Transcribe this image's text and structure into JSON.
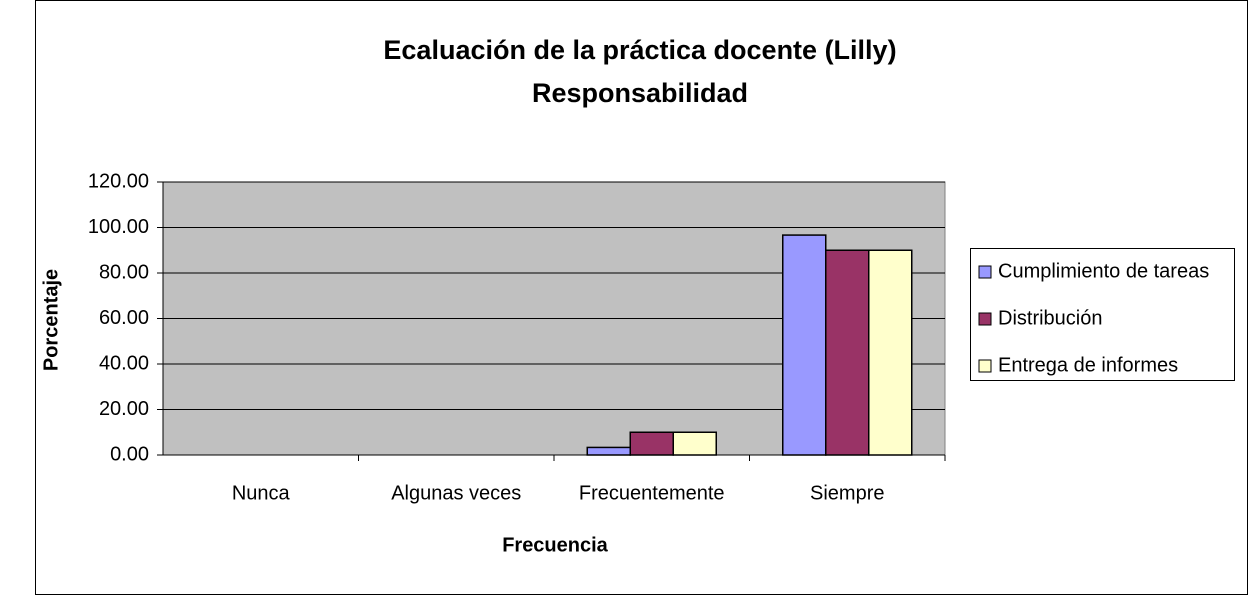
{
  "chart_data": {
    "type": "bar",
    "title": "Ecaluación de la práctica docente (Lilly)",
    "subtitle": "Responsabilidad",
    "x_label": "Frecuencia",
    "y_label": "Porcentaje",
    "categories": [
      "Nunca",
      "Algunas veces",
      "Frecuentemente",
      "Siempre"
    ],
    "series": [
      {
        "name": "Cumplimiento de tareas",
        "color": "#9999ff",
        "values": [
          0,
          0,
          3.33,
          96.67
        ]
      },
      {
        "name": "Distribución",
        "color": "#993366",
        "values": [
          0,
          0,
          10,
          90
        ]
      },
      {
        "name": "Entrega de informes",
        "color": "#ffffcc",
        "values": [
          0,
          0,
          10,
          90
        ]
      }
    ],
    "ylim": [
      0,
      120
    ],
    "yticks": [
      {
        "value": 0,
        "label": "0.00"
      },
      {
        "value": 20,
        "label": "20.00"
      },
      {
        "value": 40,
        "label": "40.00"
      },
      {
        "value": 60,
        "label": "60.00"
      },
      {
        "value": 80,
        "label": "80.00"
      },
      {
        "value": 100,
        "label": "100.00"
      },
      {
        "value": 120,
        "label": "120.00"
      }
    ],
    "grid": true,
    "plot_background": "#c0c0c0",
    "legend": "right"
  }
}
